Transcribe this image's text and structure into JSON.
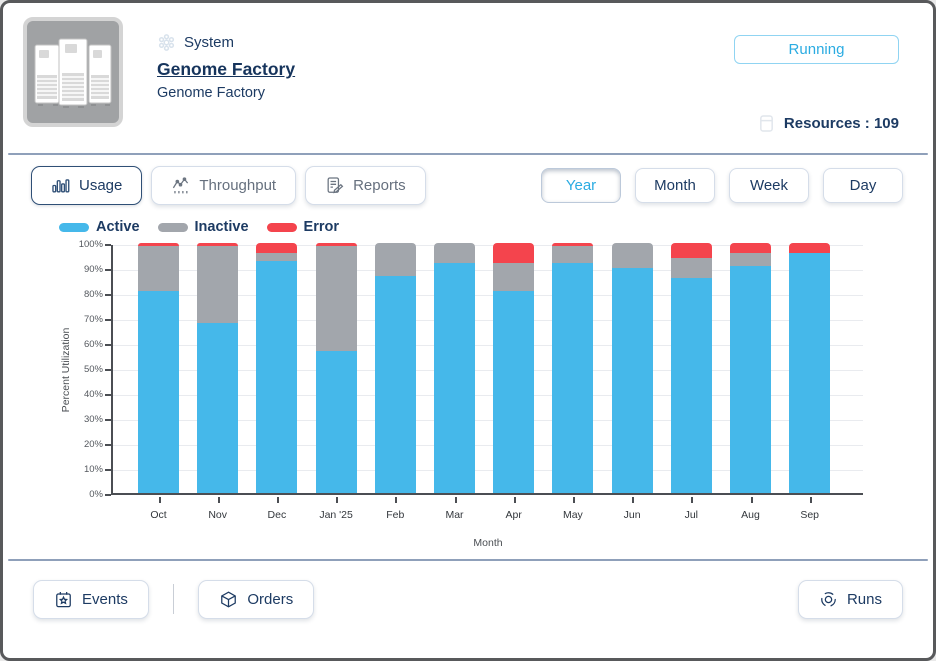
{
  "header": {
    "type_label": "System",
    "title": "Genome Factory",
    "subtitle": "Genome Factory",
    "status": "Running",
    "resources_label": "Resources : 109"
  },
  "toolbar": {
    "tabs": [
      {
        "label": "Usage",
        "icon": "bar-chart-icon",
        "active": true
      },
      {
        "label": "Throughput",
        "icon": "line-chart-icon",
        "active": false
      },
      {
        "label": "Reports",
        "icon": "report-document-icon",
        "active": false
      }
    ],
    "ranges": [
      {
        "label": "Year",
        "active": true
      },
      {
        "label": "Month",
        "active": false
      },
      {
        "label": "Week",
        "active": false
      },
      {
        "label": "Day",
        "active": false
      }
    ]
  },
  "legend": [
    {
      "label": "Active",
      "color": "#45b8ea"
    },
    {
      "label": "Inactive",
      "color": "#a2a6ac"
    },
    {
      "label": "Error",
      "color": "#f4444d"
    }
  ],
  "chart_data": {
    "type": "bar",
    "stacked": true,
    "title": "",
    "xlabel": "Month",
    "ylabel": "Percent Utilization",
    "ylim": [
      0,
      100
    ],
    "grid": true,
    "legend_position": "top-left",
    "yticks": [
      "0%",
      "10%",
      "20%",
      "30%",
      "40%",
      "50%",
      "60%",
      "70%",
      "80%",
      "90%",
      "100%"
    ],
    "categories": [
      "Oct",
      "Nov",
      "Dec",
      "Jan '25",
      "Feb",
      "Mar",
      "Apr",
      "May",
      "Jun",
      "Jul",
      "Aug",
      "Sep"
    ],
    "series": [
      {
        "name": "Active",
        "color": "#45b8ea",
        "values": [
          81,
          68,
          93,
          57,
          87,
          92,
          81,
          92,
          90,
          86,
          91,
          96
        ]
      },
      {
        "name": "Inactive",
        "color": "#a2a6ac",
        "values": [
          18,
          31,
          3,
          42,
          13,
          8,
          11,
          7,
          10,
          8,
          5,
          0
        ]
      },
      {
        "name": "Error",
        "color": "#f4444d",
        "values": [
          1,
          1,
          4,
          1,
          0,
          0,
          8,
          1,
          0,
          6,
          4,
          4
        ]
      }
    ]
  },
  "footer": {
    "events_label": "Events",
    "orders_label": "Orders",
    "runs_label": "Runs"
  },
  "colors": {
    "accent_blue": "#2bace2",
    "navy_text": "#1d3b63",
    "separator": "#8fa0ba",
    "bar_active": "#45b8ea",
    "bar_inactive": "#a2a6ac",
    "bar_error": "#f4444d"
  }
}
